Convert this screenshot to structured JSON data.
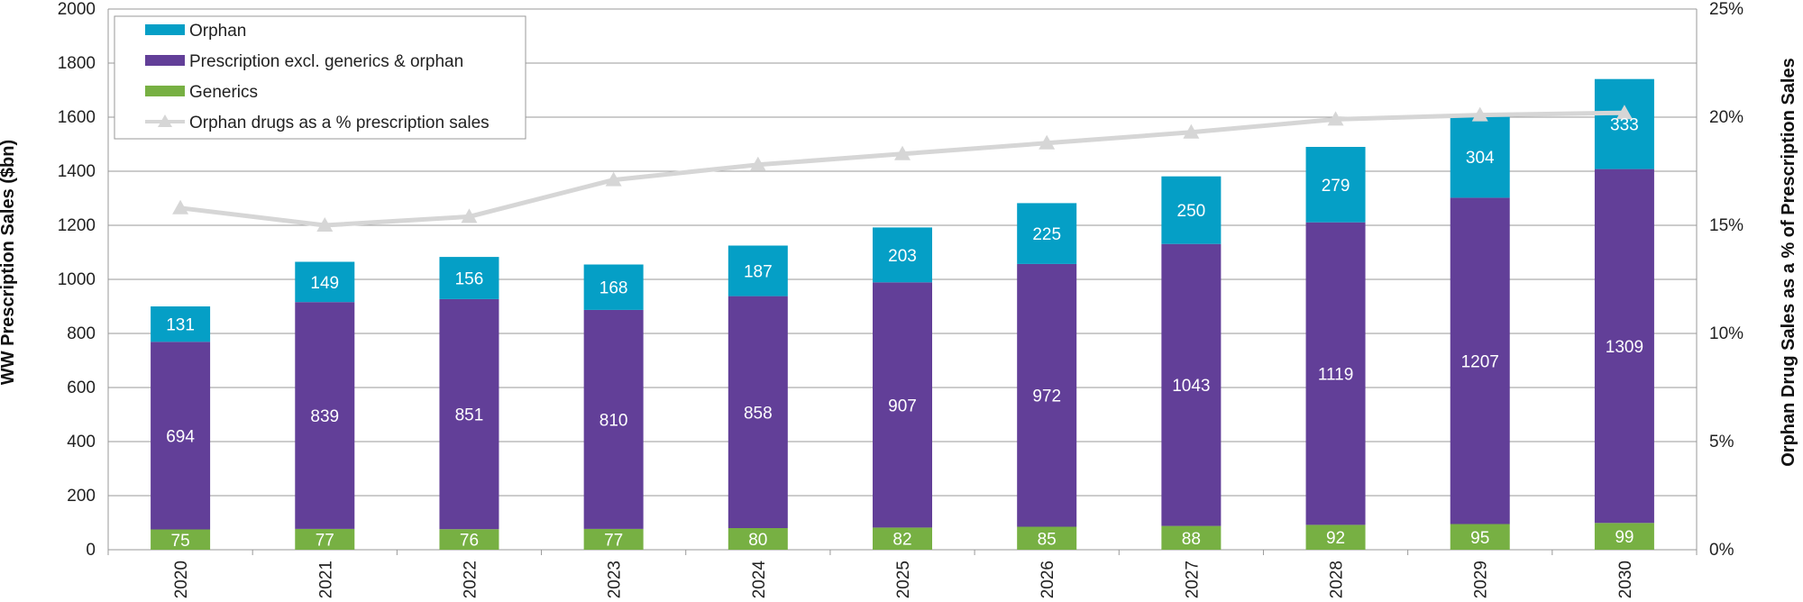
{
  "chart_data": {
    "type": "bar",
    "stacked": true,
    "categories": [
      "2020",
      "2021",
      "2022",
      "2023",
      "2024",
      "2025",
      "2026",
      "2027",
      "2028",
      "2029",
      "2030"
    ],
    "series": [
      {
        "name": "Generics",
        "color": "#77B043",
        "values": [
          75,
          77,
          76,
          77,
          80,
          82,
          85,
          88,
          92,
          95,
          99
        ]
      },
      {
        "name": "Prescription excl. generics & orphan",
        "color": "#623F98",
        "values": [
          694,
          839,
          851,
          810,
          858,
          907,
          972,
          1043,
          1119,
          1207,
          1309
        ]
      },
      {
        "name": "Orphan",
        "color": "#059FC6",
        "values": [
          131,
          149,
          156,
          168,
          187,
          203,
          225,
          250,
          279,
          304,
          333
        ]
      }
    ],
    "line_series": {
      "name": "Orphan drugs  as a % prescription sales",
      "color": "#D6D6D6",
      "axis": "right",
      "values": [
        15.8,
        15.0,
        15.4,
        17.1,
        17.8,
        18.3,
        18.8,
        19.3,
        19.9,
        20.1,
        20.2
      ]
    },
    "legend": {
      "placement": "top-left",
      "order": [
        "Orphan",
        "Prescription excl. generics & orphan",
        "Generics",
        "Orphan drugs  as a % prescription sales"
      ]
    },
    "ylabel": "WW Prescription Sales ($bn)",
    "y2label": "Orphan Drug Sales as a % of Prescription Sales",
    "ylim": [
      0,
      2000
    ],
    "yticks": [
      "0",
      "200",
      "400",
      "600",
      "800",
      "1000",
      "1200",
      "1400",
      "1600",
      "1800",
      "2000"
    ],
    "y2lim": [
      0,
      25
    ],
    "y2ticks": [
      "0%",
      "5%",
      "10%",
      "15%",
      "20%",
      "25%"
    ],
    "grid": true,
    "gridColor": "#999999"
  }
}
